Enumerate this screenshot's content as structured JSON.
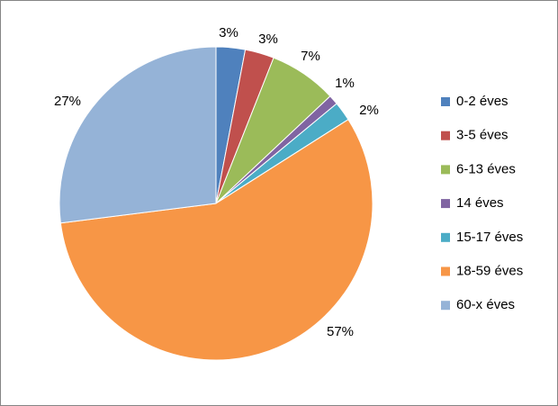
{
  "chart_data": {
    "type": "pie",
    "categories": [
      "0-2 éves",
      "3-5 éves",
      "6-13 éves",
      "14 éves",
      "15-17 éves",
      "18-59 éves",
      "60-x éves"
    ],
    "values": [
      3,
      3,
      7,
      1,
      2,
      57,
      27
    ],
    "value_labels": [
      "3%",
      "3%",
      "7%",
      "1%",
      "2%",
      "57%",
      "27%"
    ],
    "colors": [
      "#4f81bd",
      "#c0504d",
      "#9bbb59",
      "#8064a2",
      "#4bacc6",
      "#f79646",
      "#95b3d7"
    ],
    "legend": "right"
  }
}
